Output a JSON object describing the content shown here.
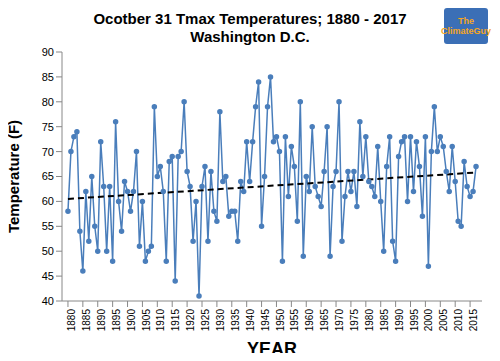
{
  "chart_data": {
    "type": "line",
    "title": "Ocotber 31 Tmax Temperatures; 1880 - 2017",
    "subtitle": "Washington D.C.",
    "x_label": "YEAR",
    "y_label": "Temperature (F)",
    "annotations": [
      "The ClimateGuy"
    ],
    "x": [
      1880,
      1881,
      1882,
      1883,
      1884,
      1885,
      1886,
      1887,
      1888,
      1889,
      1890,
      1891,
      1892,
      1893,
      1894,
      1895,
      1896,
      1897,
      1898,
      1899,
      1900,
      1901,
      1902,
      1903,
      1904,
      1905,
      1906,
      1907,
      1908,
      1909,
      1910,
      1911,
      1912,
      1913,
      1914,
      1915,
      1916,
      1917,
      1918,
      1919,
      1920,
      1921,
      1922,
      1923,
      1924,
      1925,
      1926,
      1927,
      1928,
      1929,
      1930,
      1931,
      1932,
      1933,
      1934,
      1935,
      1936,
      1937,
      1938,
      1939,
      1940,
      1941,
      1942,
      1943,
      1944,
      1945,
      1946,
      1947,
      1948,
      1949,
      1950,
      1951,
      1952,
      1953,
      1954,
      1955,
      1956,
      1957,
      1958,
      1959,
      1960,
      1961,
      1962,
      1963,
      1964,
      1965,
      1966,
      1967,
      1968,
      1969,
      1970,
      1971,
      1972,
      1973,
      1974,
      1975,
      1976,
      1977,
      1978,
      1979,
      1980,
      1981,
      1982,
      1983,
      1984,
      1985,
      1986,
      1987,
      1988,
      1989,
      1990,
      1991,
      1992,
      1993,
      1994,
      1995,
      1996,
      1997,
      1998,
      1999,
      2000,
      2001,
      2002,
      2003,
      2004,
      2005,
      2006,
      2007,
      2008,
      2009,
      2010,
      2011,
      2012,
      2013,
      2014,
      2015,
      2016,
      2017
    ],
    "values": [
      58,
      70,
      73,
      74,
      54,
      46,
      62,
      52,
      65,
      55,
      50,
      72,
      63,
      50,
      63,
      48,
      76,
      60,
      54,
      64,
      62,
      58,
      62,
      70,
      51,
      60,
      48,
      50,
      51,
      79,
      65,
      67,
      62,
      48,
      68,
      69,
      44,
      69,
      70,
      80,
      66,
      63,
      52,
      60,
      41,
      63,
      67,
      52,
      66,
      58,
      56,
      78,
      64,
      65,
      57,
      58,
      58,
      52,
      64,
      62,
      72,
      64,
      72,
      79,
      84,
      55,
      65,
      79,
      85,
      72,
      73,
      70,
      48,
      73,
      61,
      71,
      67,
      56,
      80,
      49,
      65,
      62,
      75,
      63,
      61,
      59,
      66,
      75,
      49,
      63,
      66,
      80,
      52,
      61,
      66,
      62,
      66,
      59,
      76,
      65,
      73,
      64,
      63,
      61,
      71,
      60,
      50,
      67,
      73,
      52,
      48,
      69,
      72,
      73,
      60,
      73,
      62,
      72,
      67,
      57,
      73,
      47,
      70,
      79,
      70,
      73,
      71,
      66,
      62,
      71,
      64,
      56,
      55,
      68,
      63,
      61,
      62,
      67
    ],
    "color": "#4a7ebb",
    "marker": "circle",
    "trend": {
      "x": [
        1880,
        2017
      ],
      "values": [
        60.5,
        65.8
      ],
      "color": "#000000",
      "line_style": "dashed"
    },
    "xlim": [
      1878,
      2019
    ],
    "xticks": [
      1880,
      1885,
      1890,
      1895,
      1900,
      1905,
      1910,
      1915,
      1920,
      1925,
      1930,
      1935,
      1940,
      1945,
      1950,
      1955,
      1960,
      1965,
      1970,
      1975,
      1980,
      1985,
      1990,
      1995,
      2000,
      2005,
      2010,
      2015
    ],
    "ylim": [
      40,
      90
    ],
    "yticks": [
      40,
      45,
      50,
      55,
      60,
      65,
      70,
      75,
      80,
      85,
      90
    ],
    "grid": false
  }
}
